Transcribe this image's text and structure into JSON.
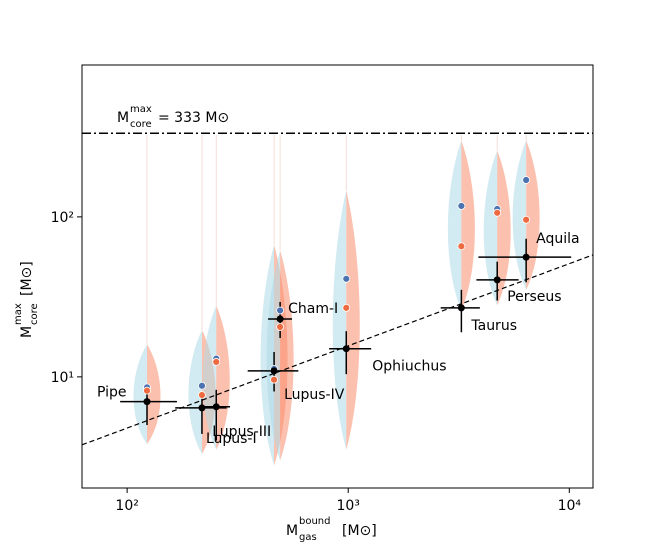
{
  "chart_data": {
    "type": "scatter",
    "xscale": "log",
    "yscale": "log",
    "xlim": [
      62.5,
      12800
    ],
    "ylim": [
      2.02,
      890
    ],
    "xticks": [
      {
        "value": 100,
        "label": "10²"
      },
      {
        "value": 1000,
        "label": "10³"
      },
      {
        "value": 10000,
        "label": "10⁴"
      }
    ],
    "yticks": [
      {
        "value": 10,
        "label": "10¹"
      },
      {
        "value": 100,
        "label": "10²"
      }
    ],
    "xlabel": {
      "base": "M",
      "sup": "bound",
      "sub": "gas",
      "unit": "[M⊙]"
    },
    "ylabel": {
      "base": "M",
      "sup": "max",
      "sub": "core",
      "unit": "[M⊙]"
    },
    "hline": {
      "value": 333,
      "label": {
        "base": "M",
        "sup": "max",
        "sub": "core",
        "text": "= 333 M⊙"
      }
    },
    "fit_line": {
      "x": [
        62.5,
        12800
      ],
      "y": [
        3.76,
        57.9
      ]
    },
    "colors": {
      "point": "#000000",
      "blue": "#4c72b0",
      "orange": "#ee6a41",
      "violin_blue": "#add8e6",
      "violin_orange": "#fa8c6c"
    },
    "clouds": [
      {
        "name": "Pipe",
        "x": 123,
        "y": 7.0,
        "xerr": [
          93,
          168
        ],
        "yerr": [
          5.0,
          8.6
        ],
        "blue": 8.6,
        "orange": 8.2,
        "violin": [
          3.8,
          16
        ]
      },
      {
        "name": "Lupus-I",
        "x": 218,
        "y": 6.4,
        "xerr": [
          165,
          282
        ],
        "yerr": [
          4.4,
          8.1
        ],
        "blue": 8.8,
        "orange": 7.7,
        "violin": [
          3.3,
          19.6
        ]
      },
      {
        "name": "Lupus-III",
        "x": 253,
        "y": 6.5,
        "xerr": [
          218,
          292
        ],
        "yerr": [
          4.0,
          8.3
        ],
        "blue": 13.0,
        "orange": 12.4,
        "violin": [
          3.5,
          28
        ]
      },
      {
        "name": "Lupus-IV",
        "x": 462,
        "y": 10.9,
        "xerr": [
          351,
          595
        ],
        "yerr": [
          8.1,
          14.3
        ],
        "blue": 11.2,
        "orange": 9.6,
        "violin": [
          2.8,
          67
        ]
      },
      {
        "name": "Cham-I",
        "x": 492,
        "y": 23,
        "xerr": [
          434,
          557
        ],
        "yerr": [
          17.5,
          29.4
        ],
        "blue": 26,
        "orange": 20.5,
        "violin": [
          3.0,
          62
        ]
      },
      {
        "name": "Ophiuchus",
        "x": 980,
        "y": 15,
        "xerr": [
          820,
          1270
        ],
        "yerr": [
          10.4,
          19.3
        ],
        "blue": 41,
        "orange": 27,
        "violin": [
          3.5,
          147
        ]
      },
      {
        "name": "Taurus",
        "x": 3250,
        "y": 27,
        "xerr": [
          2620,
          3940
        ],
        "yerr": [
          19,
          35
        ],
        "blue": 117,
        "orange": 65.5,
        "violin": [
          26,
          300
        ]
      },
      {
        "name": "Perseus",
        "x": 4720,
        "y": 40.4,
        "xerr": [
          3800,
          5900
        ],
        "yerr": [
          30,
          52.5
        ],
        "blue": 112,
        "orange": 106,
        "violin": [
          28,
          260
        ]
      },
      {
        "name": "Aquila",
        "x": 6380,
        "y": 56,
        "xerr": [
          3880,
          10200
        ],
        "yerr": [
          39,
          73
        ],
        "blue": 170,
        "orange": 96,
        "violin": [
          35,
          300
        ]
      }
    ]
  }
}
